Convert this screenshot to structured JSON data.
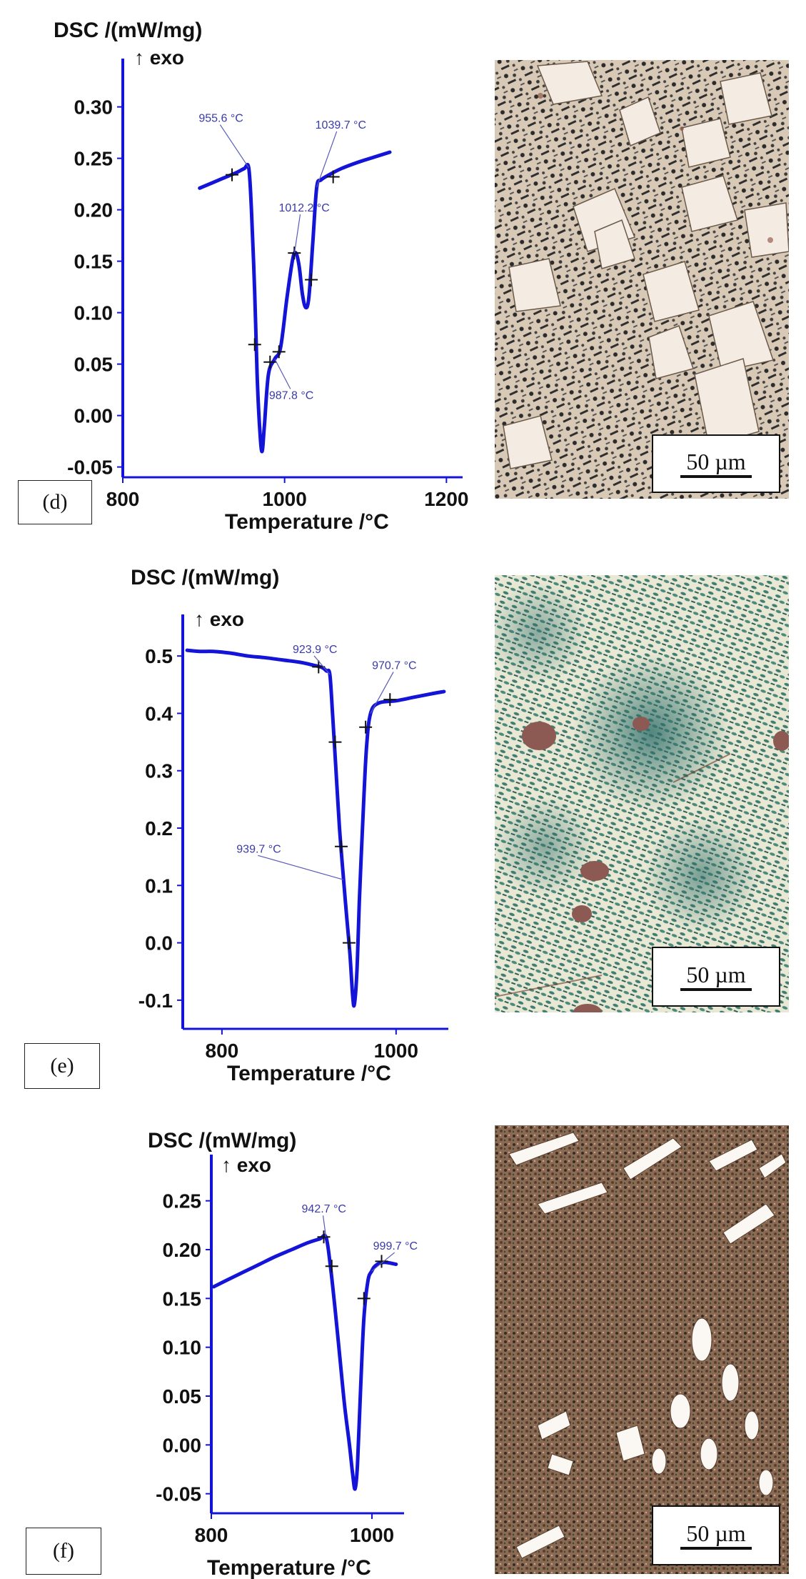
{
  "chart_data": [
    {
      "type": "line",
      "panel": "(d)",
      "ylabel": "DSC /(mW/mg)",
      "exo_label": "↑ exo",
      "xlabel": "Temperature /°C",
      "xlim": [
        800,
        1220
      ],
      "ylim": [
        -0.06,
        0.34
      ],
      "xticks": [
        800,
        1000,
        1200
      ],
      "yticks": [
        0.3,
        0.25,
        0.2,
        0.15,
        0.1,
        0.05,
        0.0,
        -0.05
      ],
      "ytick_labels": [
        "0.30",
        "0.25",
        "0.20",
        "0.15",
        "0.10",
        "0.05",
        "0.00",
        "-0.05"
      ],
      "series": [
        {
          "x": [
            895,
            910,
            925,
            940,
            950,
            955.6,
            959,
            963,
            966,
            969,
            972,
            975,
            980,
            987.8,
            995,
            1003,
            1010,
            1014,
            1018,
            1022,
            1026,
            1030,
            1035,
            1039.7,
            1045,
            1055,
            1070,
            1090,
            1110,
            1130
          ],
          "y": [
            0.221,
            0.226,
            0.231,
            0.236,
            0.24,
            0.241,
            0.2,
            0.12,
            0.04,
            -0.01,
            -0.035,
            -0.01,
            0.04,
            0.055,
            0.066,
            0.115,
            0.152,
            0.158,
            0.145,
            0.118,
            0.105,
            0.115,
            0.17,
            0.222,
            0.229,
            0.234,
            0.24,
            0.246,
            0.251,
            0.256
          ]
        }
      ],
      "markers": [
        [
          935,
          0.234
        ],
        [
          963,
          0.069
        ],
        [
          982,
          0.052
        ],
        [
          993,
          0.062
        ],
        [
          1012,
          0.158
        ],
        [
          1033,
          0.132
        ],
        [
          1060,
          0.232
        ]
      ],
      "annotations": [
        {
          "text": "955.6 °C",
          "x": 955.6,
          "y": 0.241
        },
        {
          "text": "1012.2 °C",
          "x": 1012.2,
          "y": 0.158
        },
        {
          "text": "1039.7 °C",
          "x": 1039.7,
          "y": 0.222
        },
        {
          "text": "987.8 °C",
          "x": 987.8,
          "y": 0.055
        }
      ]
    },
    {
      "type": "line",
      "panel": "(e)",
      "ylabel": "DSC /(mW/mg)",
      "exo_label": "↑ exo",
      "xlabel": "Temperature /°C",
      "xlim": [
        755,
        1060
      ],
      "ylim": [
        -0.15,
        0.56
      ],
      "xticks": [
        800,
        1000
      ],
      "yticks": [
        0.5,
        0.4,
        0.3,
        0.2,
        0.1,
        0.0,
        -0.1
      ],
      "ytick_labels": [
        "0.5",
        "0.4",
        "0.3",
        "0.2",
        "0.1",
        "0.0",
        "-0.1"
      ],
      "series": [
        {
          "x": [
            760,
            775,
            790,
            810,
            830,
            850,
            870,
            890,
            905,
            915,
            920,
            923.9,
            927,
            931,
            935,
            939.7,
            943,
            947,
            950,
            952,
            955,
            958,
            962,
            966,
            970.7,
            980,
            1000,
            1020,
            1040,
            1055
          ],
          "y": [
            0.51,
            0.508,
            0.508,
            0.505,
            0.5,
            0.497,
            0.493,
            0.489,
            0.484,
            0.48,
            0.474,
            0.468,
            0.4,
            0.3,
            0.2,
            0.11,
            0.05,
            -0.02,
            -0.09,
            -0.108,
            -0.05,
            0.08,
            0.22,
            0.34,
            0.4,
            0.418,
            0.422,
            0.428,
            0.434,
            0.438
          ]
        }
      ],
      "markers": [
        [
          911,
          0.481
        ],
        [
          930,
          0.35
        ],
        [
          937,
          0.168
        ],
        [
          946,
          0.0
        ],
        [
          965,
          0.376
        ],
        [
          993,
          0.424
        ]
      ],
      "annotations": [
        {
          "text": "923.9 °C",
          "x": 923.9,
          "y": 0.468
        },
        {
          "text": "970.7 °C",
          "x": 970.7,
          "y": 0.4
        },
        {
          "text": "939.7 °C",
          "x": 939.7,
          "y": 0.11
        }
      ]
    },
    {
      "type": "line",
      "panel": "(f)",
      "ylabel": "DSC /(mW/mg)",
      "exo_label": "↑ exo",
      "xlabel": "Temperature /°C",
      "xlim": [
        800,
        1040
      ],
      "ylim": [
        -0.07,
        0.29
      ],
      "xticks": [
        800,
        1000
      ],
      "yticks": [
        0.25,
        0.2,
        0.15,
        0.1,
        0.05,
        0.0,
        -0.05
      ],
      "ytick_labels": [
        "0.25",
        "0.20",
        "0.15",
        "0.10",
        "0.05",
        "0.00",
        "-0.05"
      ],
      "series": [
        {
          "x": [
            803,
            820,
            840,
            860,
            880,
            900,
            920,
            935,
            942.7,
            948,
            954,
            960,
            966,
            972,
            976,
            979,
            982,
            986,
            990,
            995,
            999.7,
            1005,
            1015,
            1030
          ],
          "y": [
            0.162,
            0.169,
            0.177,
            0.185,
            0.193,
            0.2,
            0.207,
            0.211,
            0.213,
            0.185,
            0.14,
            0.09,
            0.04,
            0.0,
            -0.03,
            -0.045,
            -0.02,
            0.06,
            0.13,
            0.168,
            0.178,
            0.184,
            0.187,
            0.185
          ]
        }
      ],
      "markers": [
        [
          940,
          0.213
        ],
        [
          950,
          0.183
        ],
        [
          990,
          0.15
        ],
        [
          1012,
          0.188
        ]
      ],
      "annotations": [
        {
          "text": "942.7 °C",
          "x": 942.7,
          "y": 0.213
        },
        {
          "text": "999.7 °C",
          "x": 999.7,
          "y": 0.178
        }
      ]
    }
  ],
  "panels": [
    {
      "letter": "(d)",
      "scale_label": "50 µm"
    },
    {
      "letter": "(e)",
      "scale_label": "50 µm"
    },
    {
      "letter": "(f)",
      "scale_label": "50 µm"
    }
  ],
  "colors": {
    "curve": "#1414d8",
    "axis": "#1414d8",
    "annotation": "#3a3aa8",
    "tick_mark": "#111111"
  }
}
